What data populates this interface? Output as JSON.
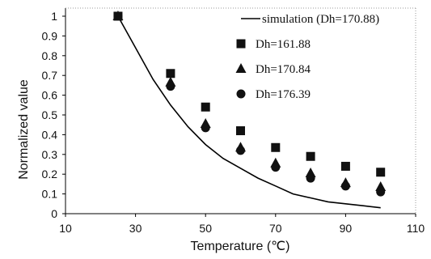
{
  "chart_data": {
    "type": "scatter",
    "xlabel": "Temperature (℃)",
    "ylabel": "Normalized value",
    "xlim": [
      10,
      110
    ],
    "ylim": [
      0,
      1
    ],
    "x_ticks": [
      "10",
      "30",
      "50",
      "70",
      "90",
      "110"
    ],
    "y_ticks": [
      "0",
      "0.1",
      "0.2",
      "0.3",
      "0.4",
      "0.5",
      "0.6",
      "0.7",
      "0.8",
      "0.9",
      "1"
    ],
    "grid": false,
    "legend_position": "top-right",
    "series": [
      {
        "name": "simulation (Dh=170.88)",
        "kind": "line",
        "marker": "none",
        "x": [
          25,
          30,
          35,
          40,
          45,
          50,
          55,
          60,
          65,
          70,
          75,
          80,
          85,
          90,
          95,
          100
        ],
        "y": [
          1.0,
          0.84,
          0.68,
          0.55,
          0.44,
          0.35,
          0.28,
          0.23,
          0.18,
          0.14,
          0.1,
          0.08,
          0.06,
          0.05,
          0.04,
          0.03
        ]
      },
      {
        "name": "Dh=161.88",
        "kind": "points",
        "marker": "square",
        "x": [
          25,
          40,
          50,
          60,
          70,
          80,
          90,
          100
        ],
        "y": [
          1.0,
          0.71,
          0.54,
          0.42,
          0.335,
          0.29,
          0.24,
          0.21
        ]
      },
      {
        "name": "Dh=170.84",
        "kind": "points",
        "marker": "triangle",
        "x": [
          25,
          40,
          50,
          60,
          70,
          80,
          90,
          100
        ],
        "y": [
          1.0,
          0.665,
          0.455,
          0.335,
          0.255,
          0.205,
          0.155,
          0.135
        ]
      },
      {
        "name": "Dh=176.39",
        "kind": "points",
        "marker": "circle",
        "x": [
          25,
          40,
          50,
          60,
          70,
          80,
          90,
          100
        ],
        "y": [
          1.0,
          0.645,
          0.435,
          0.32,
          0.235,
          0.18,
          0.14,
          0.11
        ]
      }
    ]
  }
}
